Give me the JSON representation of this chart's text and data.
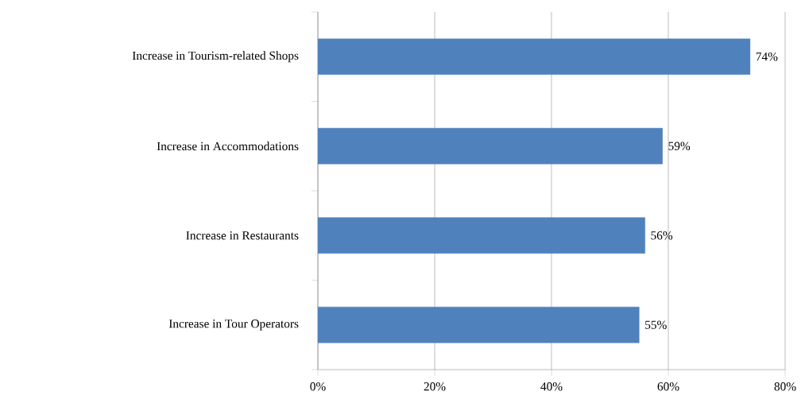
{
  "chart_data": {
    "type": "bar",
    "orientation": "horizontal",
    "categories": [
      "Increase in Tourism-related Shops",
      "Increase in Accommodations",
      "Increase in Restaurants",
      "Increase in Tour Operators"
    ],
    "values": [
      74,
      59,
      56,
      55
    ],
    "value_labels": [
      "74%",
      "59%",
      "56%",
      "55%"
    ],
    "color": "#4f81bd",
    "xlim": [
      0,
      80
    ],
    "xticks": [
      {
        "value": 0,
        "label": "0%"
      },
      {
        "value": 20,
        "label": "20%"
      },
      {
        "value": 40,
        "label": "40%"
      },
      {
        "value": 60,
        "label": "60%"
      },
      {
        "value": 80,
        "label": "80%"
      }
    ],
    "grid": "x"
  }
}
